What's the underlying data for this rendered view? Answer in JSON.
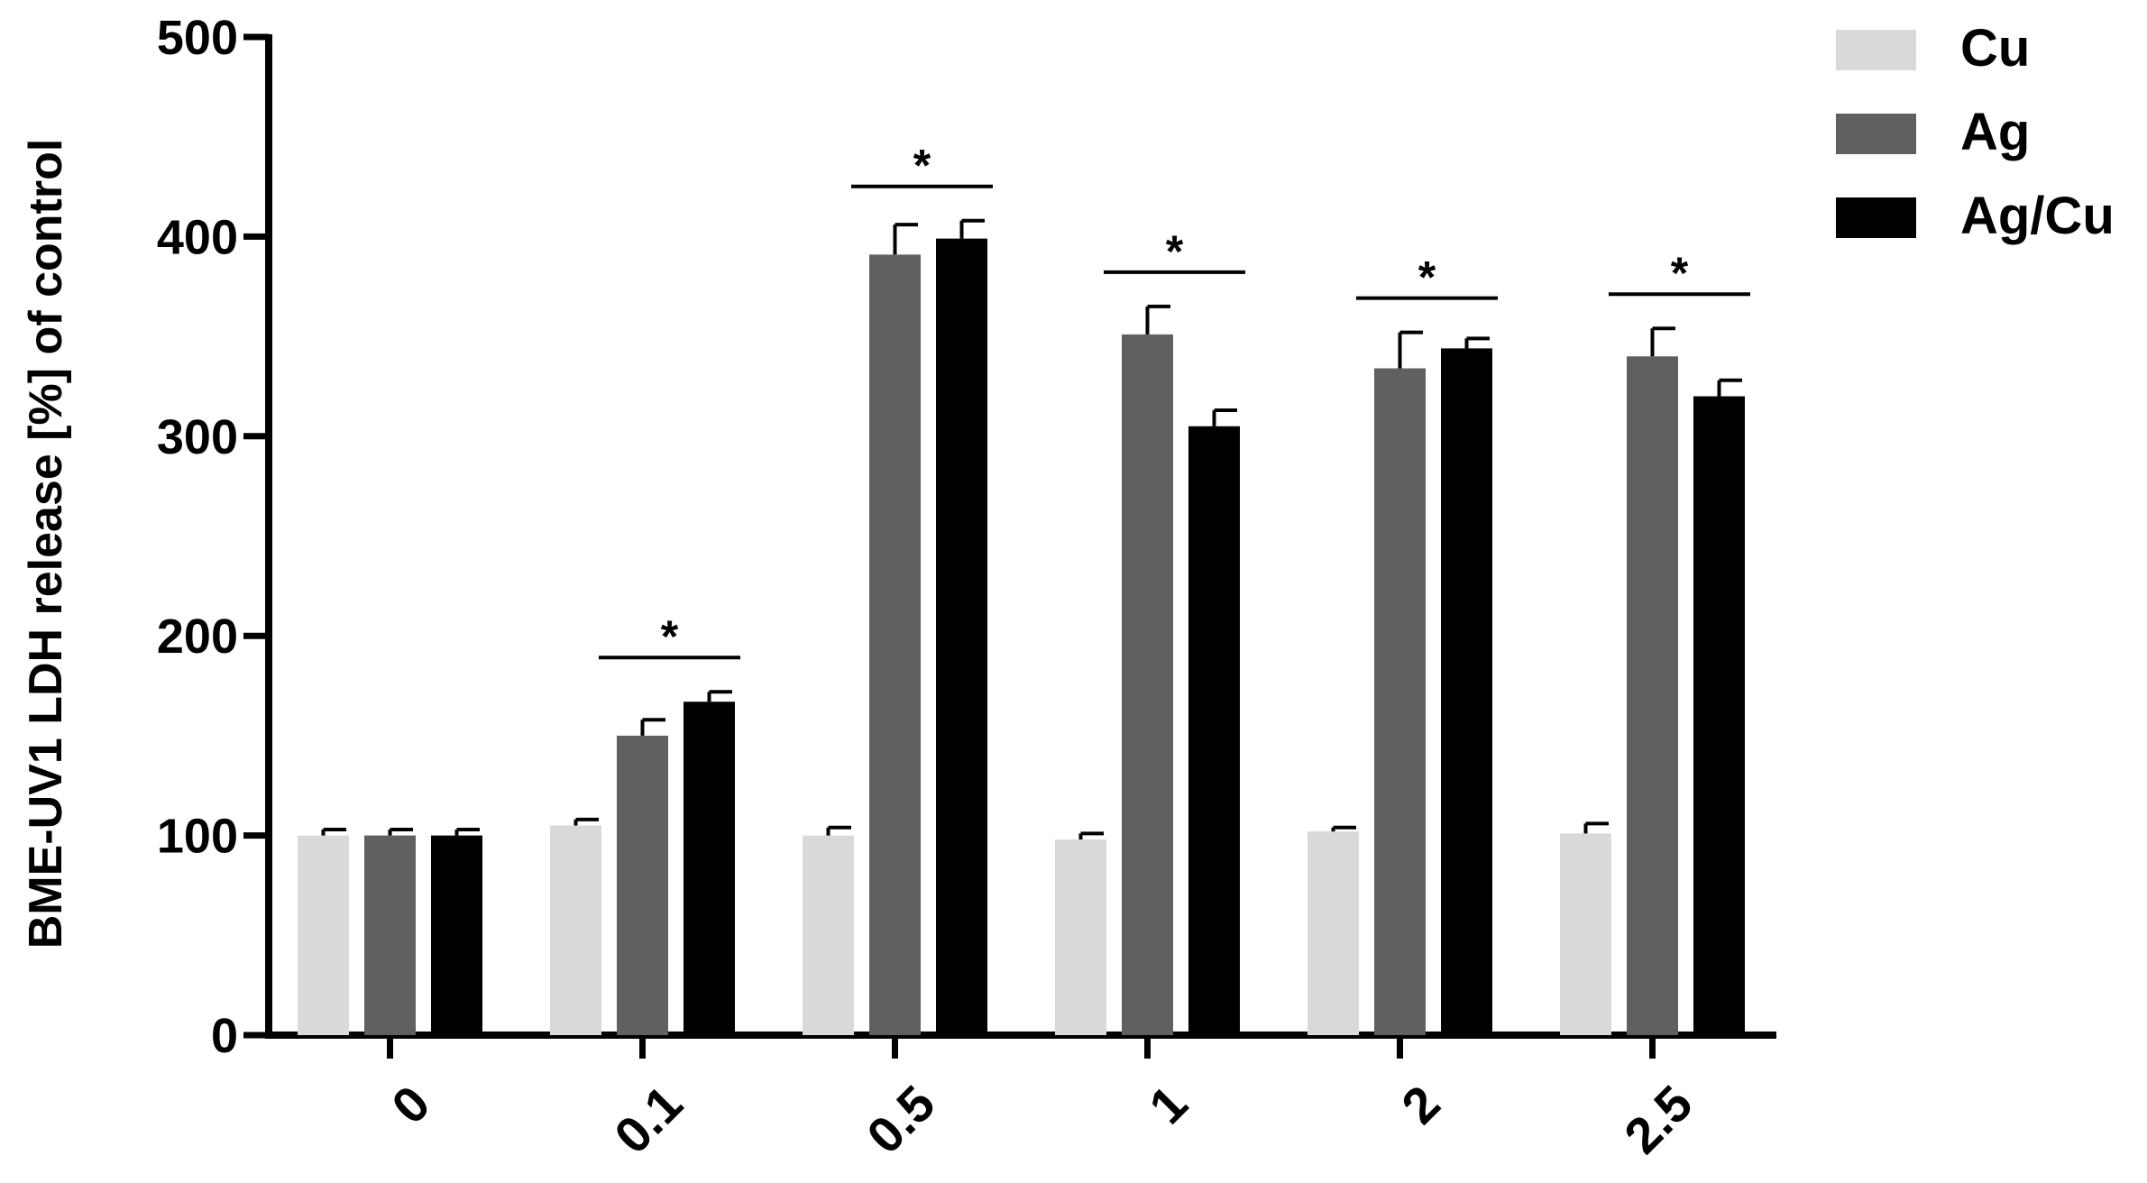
{
  "chart_data": {
    "type": "bar",
    "ylabel": "BME-UV1 LDH release [%] of control",
    "xlabel": "",
    "ylim": [
      0,
      500
    ],
    "yticks": [
      0,
      100,
      200,
      300,
      400,
      500
    ],
    "categories": [
      "0",
      "0.1",
      "0.5",
      "1",
      "2",
      "2.5"
    ],
    "series": [
      {
        "name": "Cu",
        "color": "#d9d9d9",
        "values": [
          100,
          105,
          100,
          98,
          102,
          101
        ],
        "errors": [
          3,
          3,
          4,
          3,
          2,
          5
        ]
      },
      {
        "name": "Ag",
        "color": "#606060",
        "values": [
          100,
          150,
          391,
          351,
          334,
          340
        ],
        "errors": [
          3,
          8,
          15,
          14,
          18,
          14
        ]
      },
      {
        "name": "Ag/Cu",
        "color": "#000000",
        "values": [
          100,
          167,
          399,
          305,
          344,
          320
        ],
        "errors": [
          3,
          5,
          9,
          8,
          5,
          8
        ]
      }
    ],
    "significance": [
      {
        "category": "0.1",
        "label": "*"
      },
      {
        "category": "0.5",
        "label": "*"
      },
      {
        "category": "1",
        "label": "*"
      },
      {
        "category": "2",
        "label": "*"
      },
      {
        "category": "2.5",
        "label": "*"
      }
    ],
    "legend_position": "top-right",
    "grid": false
  }
}
